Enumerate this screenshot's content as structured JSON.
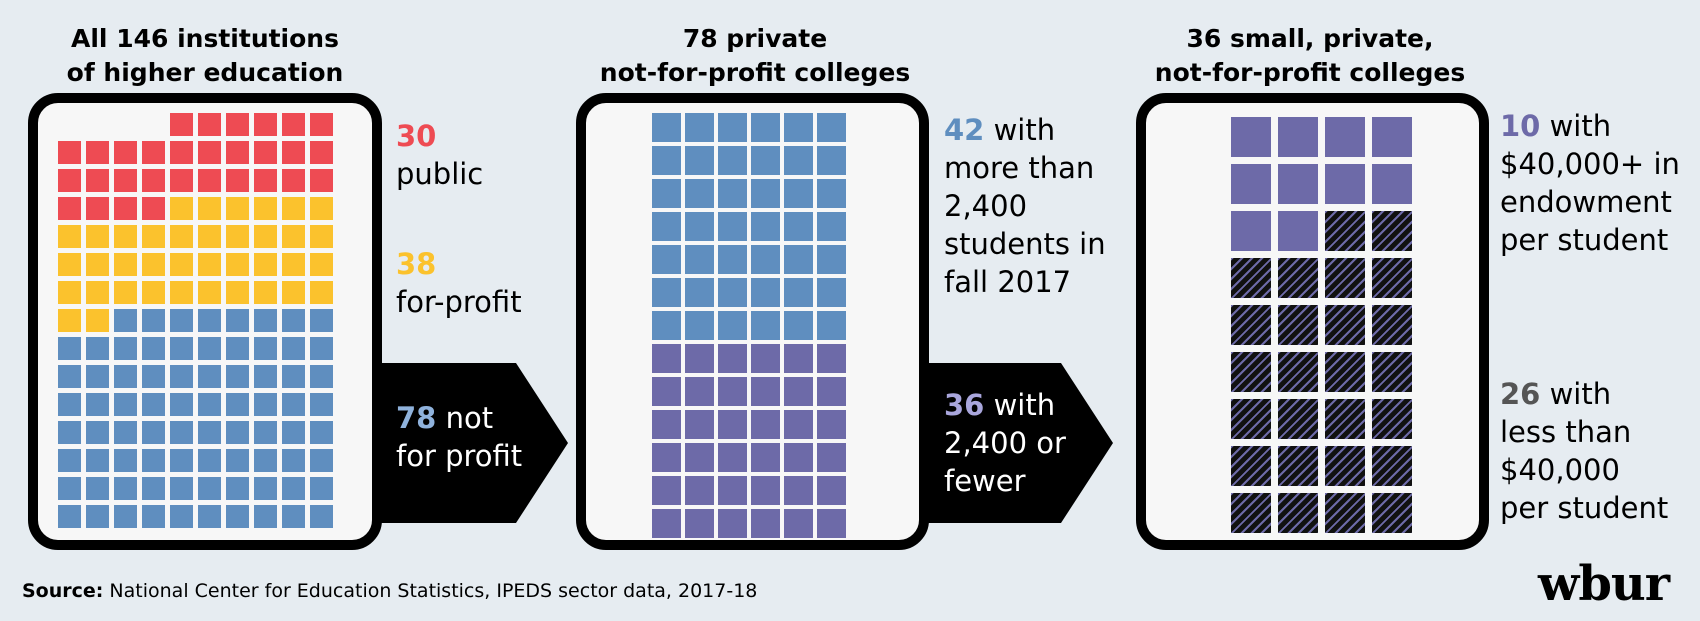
{
  "colors": {
    "public": "#ee4b53",
    "for_profit": "#fbc22d",
    "not_for_profit": "#5f8ebf",
    "small": "#6d6aa8",
    "hatched": "hatch-purple-black"
  },
  "panel1": {
    "title": [
      "All 146 institutions",
      "of higher education"
    ],
    "public": {
      "num": "30",
      "lines": [
        "public"
      ]
    },
    "for_profit": {
      "num": "38",
      "lines": [
        "for-profit"
      ]
    },
    "not_for_profit": {
      "num": "78",
      "first": " not",
      "lines": [
        "for profit"
      ]
    }
  },
  "panel2": {
    "title": [
      "78 private",
      "not-for-profit colleges"
    ],
    "large": {
      "num": "42",
      "first": " with",
      "lines": [
        "more than",
        "2,400",
        "students in",
        "fall 2017"
      ]
    },
    "small": {
      "num": "36",
      "first": " with",
      "lines": [
        "2,400 or",
        "fewer"
      ]
    }
  },
  "panel3": {
    "title": [
      "36 small, private,",
      "not-for-profit colleges"
    ],
    "rich": {
      "num": "10",
      "first": " with",
      "lines": [
        "$40,000+ in",
        "endowment",
        "per student"
      ]
    },
    "poor": {
      "num": "26",
      "first": " with",
      "lines": [
        "less than",
        "$40,000",
        "per student"
      ]
    }
  },
  "chart_data": [
    {
      "type": "waffle",
      "title": "All 146 institutions of higher education",
      "categories": [
        "public",
        "for-profit",
        "not for profit"
      ],
      "values": [
        30,
        38,
        78
      ],
      "total": 146
    },
    {
      "type": "waffle",
      "title": "78 private not-for-profit colleges",
      "categories": [
        "more than 2,400 students in fall 2017",
        "2,400 or fewer"
      ],
      "values": [
        42,
        36
      ],
      "total": 78
    },
    {
      "type": "waffle",
      "title": "36 small, private, not-for-profit colleges",
      "categories": [
        "$40,000+ in endowment per student",
        "less than $40,000 per student"
      ],
      "values": [
        10,
        26
      ],
      "total": 36
    }
  ],
  "source": {
    "key": "Source:",
    "text": " National Center for Education Statistics, IPEDS sector data, 2017-18"
  },
  "logo": "wbur"
}
